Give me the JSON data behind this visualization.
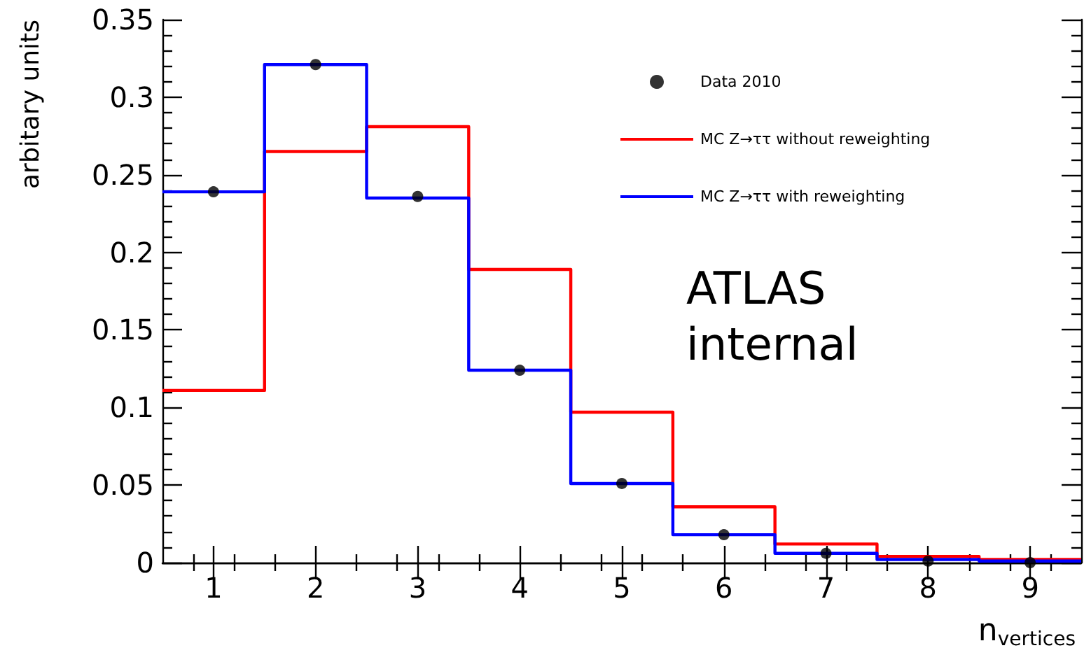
{
  "chart_data": {
    "type": "histogram",
    "xlabel": "n$_{vertices}$",
    "ylabel": "arbitary units",
    "bins": [
      0.5,
      1.5,
      2.5,
      3.5,
      4.5,
      5.5,
      6.5,
      7.5,
      8.5,
      9.5
    ],
    "series": [
      {
        "name": "Data 2010",
        "type": "scatter",
        "color": "#000000",
        "marker": "circle",
        "x": [
          1,
          2,
          3,
          4,
          5,
          6,
          7,
          8,
          9
        ],
        "values": [
          0.239,
          0.321,
          0.236,
          0.124,
          0.051,
          0.018,
          0.006,
          0.001,
          0
        ]
      },
      {
        "name": "MC Z→ττ without reweighting",
        "color": "#ff0000",
        "values": [
          0.111,
          0.265,
          0.281,
          0.189,
          0.097,
          0.036,
          0.012,
          0.004,
          0.002
        ]
      },
      {
        "name": "MC Z→ττ with reweighting",
        "color": "#0000ff",
        "values": [
          0.239,
          0.321,
          0.235,
          0.124,
          0.051,
          0.018,
          0.006,
          0.002,
          0.001
        ]
      }
    ],
    "xlim": [
      0.5,
      9.5
    ],
    "xticks": [
      1,
      2,
      3,
      4,
      5,
      6,
      7,
      8,
      9
    ],
    "ylim": [
      0,
      0.35
    ],
    "yticks": [
      0,
      0.05,
      0.1,
      0.15,
      0.2,
      0.25,
      0.3,
      0.35
    ],
    "grid": false,
    "legend": "top right",
    "annotations": [
      "ATLAS internal"
    ]
  }
}
